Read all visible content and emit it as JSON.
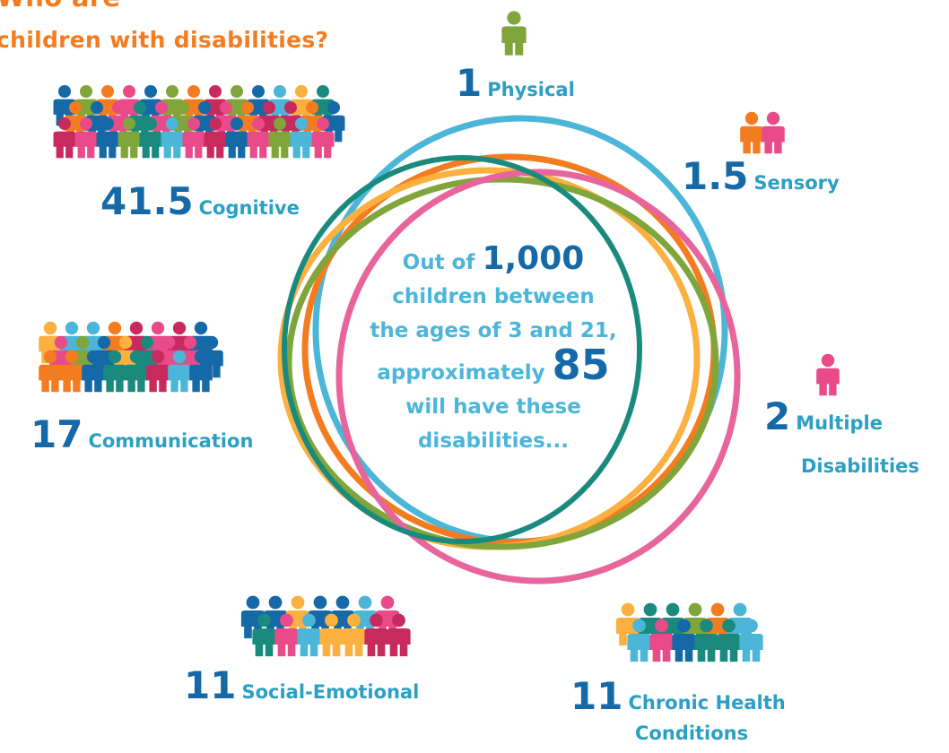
{
  "title": {
    "line1": "Who are",
    "line2": "children with disabilities?"
  },
  "center": {
    "prefix": "Out of",
    "total": "1,000",
    "line2": "children between",
    "line3": "the ages of 3 and 21,",
    "line4_prefix": "approximately",
    "highlight": "85",
    "line5": "will have these",
    "line6": "disabilities..."
  },
  "categories": [
    {
      "value": "41.5",
      "name": "Cognitive"
    },
    {
      "value": "1",
      "name": "Physical"
    },
    {
      "value": "1.5",
      "name": "Sensory"
    },
    {
      "value": "17",
      "name": "Communication"
    },
    {
      "value": "2",
      "name": "Multiple",
      "name2": "Disabilities"
    },
    {
      "value": "11",
      "name": "Social-Emotional"
    },
    {
      "value": "11",
      "name": "Chronic Health",
      "name2": "Conditions"
    }
  ],
  "colors": {
    "title": "#f47c20",
    "number": "#1569a7",
    "label": "#2b9fc4",
    "palette": [
      "#f47c20",
      "#e84a8a",
      "#4cb6d8",
      "#1569a7",
      "#7fa53b",
      "#1b8a7e",
      "#fbb040",
      "#c72b5e"
    ]
  }
}
